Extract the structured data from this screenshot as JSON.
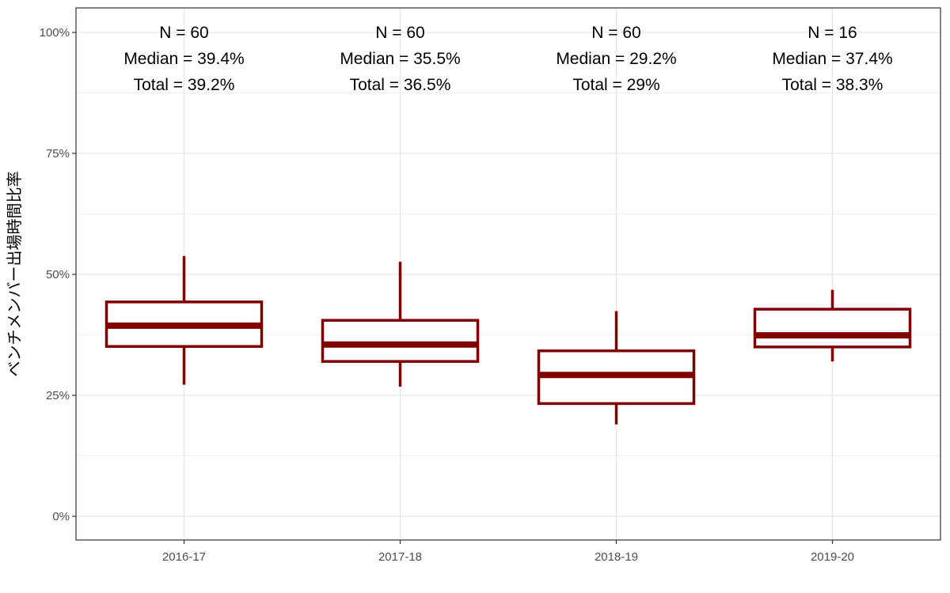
{
  "chart_data": {
    "type": "box",
    "title": "",
    "xlabel": "",
    "ylabel": "ベンチメンバー出場時間比率",
    "ylim": [
      -0.05,
      1.05
    ],
    "yticks": [
      {
        "value": 0,
        "label": "0%"
      },
      {
        "value": 0.25,
        "label": "25%"
      },
      {
        "value": 0.5,
        "label": "50%"
      },
      {
        "value": 0.75,
        "label": "75%"
      },
      {
        "value": 1.0,
        "label": "100%"
      }
    ],
    "minor_gridlines": [
      0.125,
      0.375,
      0.625,
      0.875
    ],
    "grid": true,
    "color": "#800000",
    "categories": [
      "2016-17",
      "2017-18",
      "2018-19",
      "2019-20"
    ],
    "boxes": [
      {
        "category": "2016-17",
        "whisker_low": 0.272,
        "q1": 0.351,
        "median": 0.394,
        "q3": 0.443,
        "whisker_high": 0.538,
        "annotations": [
          "N = 60",
          "Median = 39.4%",
          "Total = 39.2%"
        ]
      },
      {
        "category": "2017-18",
        "whisker_low": 0.268,
        "q1": 0.32,
        "median": 0.355,
        "q3": 0.405,
        "whisker_high": 0.526,
        "annotations": [
          "N = 60",
          "Median = 35.5%",
          "Total = 36.5%"
        ]
      },
      {
        "category": "2018-19",
        "whisker_low": 0.19,
        "q1": 0.233,
        "median": 0.292,
        "q3": 0.342,
        "whisker_high": 0.424,
        "annotations": [
          "N = 60",
          "Median = 29.2%",
          "Total = 29%"
        ]
      },
      {
        "category": "2019-20",
        "whisker_low": 0.32,
        "q1": 0.35,
        "median": 0.374,
        "q3": 0.428,
        "whisker_high": 0.468,
        "annotations": [
          "N = 16",
          "Median = 37.4%",
          "Total = 38.3%"
        ]
      }
    ]
  }
}
